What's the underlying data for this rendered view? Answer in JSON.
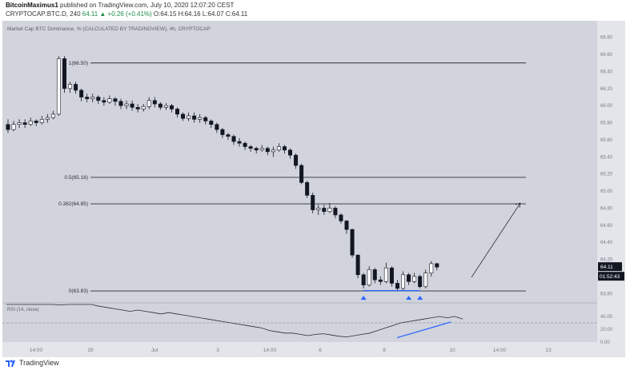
{
  "header": {
    "publisher": "BitcoinMaximus1",
    "published_text": "published on TradingView.com, July 10, 2020 12:07:20 CEST",
    "symbol": "CRYPTOCAP:BTC.D, 240",
    "change": "64.11 ▲ +0.26 (+0.41%)",
    "ohlc": "O:64.15 H:64.16 L:64.07 C:64.11"
  },
  "footer": {
    "brand": "TradingView"
  },
  "chart_data": {
    "type": "candlestick",
    "title": "Market Cap BTC Dominance, % (CALCULATED BY TRADINGVIEW), 4h, CRYPTOCAP",
    "ylim": [
      63.7,
      66.9
    ],
    "yticks": [
      "66.80",
      "66.60",
      "66.40",
      "66.20",
      "66.00",
      "65.80",
      "65.60",
      "65.40",
      "65.20",
      "65.00",
      "64.80",
      "64.60",
      "64.40",
      "64.20",
      "64.00",
      "63.80"
    ],
    "xticks": [
      "14:00",
      "29",
      "Jul",
      "3",
      "14:00",
      "6",
      "8",
      "10",
      "14:00",
      "13"
    ],
    "fib_levels": [
      {
        "label": "1(66.50)",
        "value": 66.5
      },
      {
        "label": "0.5(65.16)",
        "value": 65.16
      },
      {
        "label": "0.382(64.85)",
        "value": 64.85
      },
      {
        "label": "0(63.83)",
        "value": 63.83
      }
    ],
    "last_price": "64.11",
    "countdown": "01:52:43",
    "candles": [
      [
        65.78,
        65.72,
        65.84,
        65.68
      ],
      [
        65.72,
        65.78,
        65.82,
        65.7
      ],
      [
        65.78,
        65.8,
        65.84,
        65.74
      ],
      [
        65.8,
        65.78,
        65.84,
        65.74
      ],
      [
        65.78,
        65.82,
        65.86,
        65.76
      ],
      [
        65.82,
        65.8,
        65.84,
        65.76
      ],
      [
        65.8,
        65.84,
        65.88,
        65.78
      ],
      [
        65.84,
        65.86,
        65.9,
        65.8
      ],
      [
        65.86,
        65.9,
        65.94,
        65.84
      ],
      [
        65.9,
        66.55,
        66.58,
        65.88
      ],
      [
        66.55,
        66.2,
        66.58,
        66.15
      ],
      [
        66.2,
        66.25,
        66.28,
        66.15
      ],
      [
        66.25,
        66.18,
        66.28,
        66.14
      ],
      [
        66.18,
        66.1,
        66.2,
        66.05
      ],
      [
        66.1,
        66.08,
        66.14,
        66.04
      ],
      [
        66.08,
        66.1,
        66.14,
        66.04
      ],
      [
        66.1,
        66.06,
        66.12,
        66.02
      ],
      [
        66.06,
        66.04,
        66.1,
        66.0
      ],
      [
        66.04,
        66.08,
        66.12,
        66.02
      ],
      [
        66.08,
        66.05,
        66.1,
        66.0
      ],
      [
        66.05,
        66.0,
        66.08,
        65.96
      ],
      [
        66.0,
        66.02,
        66.06,
        65.96
      ],
      [
        66.02,
        65.98,
        66.06,
        65.94
      ],
      [
        65.98,
        65.96,
        66.02,
        65.92
      ],
      [
        65.96,
        65.99,
        66.02,
        65.93
      ],
      [
        65.99,
        66.06,
        66.1,
        65.96
      ],
      [
        66.06,
        66.02,
        66.1,
        65.98
      ],
      [
        66.02,
        65.98,
        66.04,
        65.95
      ],
      [
        65.98,
        66.0,
        66.03,
        65.95
      ],
      [
        66.0,
        65.96,
        66.02,
        65.92
      ],
      [
        65.96,
        65.9,
        65.98,
        65.86
      ],
      [
        65.9,
        65.85,
        65.92,
        65.82
      ],
      [
        65.85,
        65.88,
        65.92,
        65.82
      ],
      [
        65.88,
        65.84,
        65.92,
        65.8
      ],
      [
        65.84,
        65.86,
        65.9,
        65.8
      ],
      [
        65.86,
        65.82,
        65.88,
        65.78
      ],
      [
        65.82,
        65.78,
        65.84,
        65.74
      ],
      [
        65.78,
        65.72,
        65.8,
        65.68
      ],
      [
        65.72,
        65.66,
        65.74,
        65.62
      ],
      [
        65.66,
        65.64,
        65.68,
        65.6
      ],
      [
        65.64,
        65.58,
        65.66,
        65.54
      ],
      [
        65.58,
        65.56,
        65.62,
        65.52
      ],
      [
        65.56,
        65.52,
        65.58,
        65.48
      ],
      [
        65.52,
        65.5,
        65.54,
        65.46
      ],
      [
        65.5,
        65.48,
        65.52,
        65.44
      ],
      [
        65.48,
        65.5,
        65.54,
        65.46
      ],
      [
        65.5,
        65.46,
        65.52,
        65.42
      ],
      [
        65.46,
        65.48,
        65.52,
        65.4
      ],
      [
        65.48,
        65.52,
        65.56,
        65.46
      ],
      [
        65.52,
        65.48,
        65.54,
        65.44
      ],
      [
        65.48,
        65.42,
        65.5,
        65.38
      ],
      [
        65.42,
        65.3,
        65.44,
        65.26
      ],
      [
        65.3,
        65.1,
        65.32,
        65.08
      ],
      [
        65.1,
        64.95,
        65.12,
        64.92
      ],
      [
        64.95,
        64.78,
        64.98,
        64.74
      ],
      [
        64.78,
        64.8,
        64.84,
        64.72
      ],
      [
        64.8,
        64.76,
        64.84,
        64.72
      ],
      [
        64.76,
        64.8,
        64.86,
        64.74
      ],
      [
        64.8,
        64.72,
        64.82,
        64.68
      ],
      [
        64.72,
        64.65,
        64.74,
        64.62
      ],
      [
        64.65,
        64.55,
        64.66,
        64.5
      ],
      [
        64.55,
        64.25,
        64.56,
        64.22
      ],
      [
        64.25,
        64.02,
        64.26,
        63.98
      ],
      [
        64.02,
        63.9,
        64.04,
        63.86
      ],
      [
        63.9,
        64.08,
        64.12,
        63.88
      ],
      [
        64.08,
        63.96,
        64.1,
        63.92
      ],
      [
        63.96,
        63.94,
        64.0,
        63.9
      ],
      [
        63.94,
        64.1,
        64.16,
        63.92
      ],
      [
        64.1,
        63.92,
        64.12,
        63.88
      ],
      [
        63.92,
        63.86,
        63.96,
        63.84
      ],
      [
        63.86,
        64.02,
        64.06,
        63.84
      ],
      [
        64.02,
        63.94,
        64.04,
        63.9
      ],
      [
        63.94,
        64.0,
        64.04,
        63.92
      ],
      [
        64.0,
        63.88,
        64.02,
        63.86
      ],
      [
        63.88,
        64.04,
        64.08,
        63.86
      ],
      [
        64.04,
        64.15,
        64.18,
        64.0
      ],
      [
        64.15,
        64.11,
        64.16,
        64.07
      ]
    ],
    "marker_candles": [
      63,
      71,
      73
    ],
    "rsi": {
      "label": "RSI (14, close)",
      "ylim": [
        0,
        60
      ],
      "yticks": [
        "40.00",
        "20.00",
        "0.00"
      ],
      "overbought": 30,
      "values": [
        72,
        68,
        66,
        70,
        64,
        60,
        62,
        58,
        66,
        64,
        62,
        60,
        56,
        54,
        52,
        50,
        48,
        50,
        48,
        46,
        44,
        46,
        44,
        42,
        40,
        38,
        36,
        34,
        32,
        30,
        28,
        26,
        24,
        22,
        18,
        16,
        14,
        14,
        12,
        10,
        12,
        13,
        11,
        9,
        8,
        10,
        12,
        14,
        18,
        22,
        26,
        30,
        32,
        34,
        36,
        38,
        40,
        38,
        40,
        36
      ]
    }
  },
  "annotations": {
    "target_arrow": "up-right",
    "rsi_divergence": "bullish"
  },
  "colors": {
    "background": "#d1d4dc",
    "candle_up": "#ffffff",
    "candle_down": "#131722",
    "fib_line": "#2a2e39",
    "marker": "#2962ff",
    "rsi_line": "#2a2e39",
    "divergence_line": "#2962ff"
  }
}
